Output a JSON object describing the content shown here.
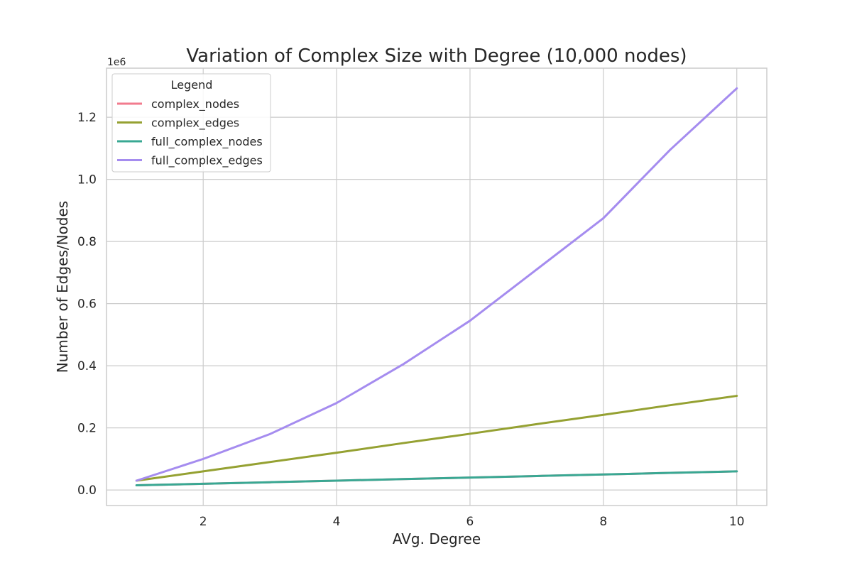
{
  "chart_data": {
    "type": "line",
    "title": "Variation of Complex Size with Degree (10,000 nodes)",
    "xlabel": "AVg. Degree",
    "ylabel": "Number of Edges/Nodes",
    "y_offset_label": "1e6",
    "xlim": [
      0.55,
      10.45
    ],
    "ylim": [
      -0.05,
      1.358
    ],
    "x_ticks": [
      2,
      4,
      6,
      8,
      10
    ],
    "x_tick_labels": [
      "2",
      "4",
      "6",
      "8",
      "10"
    ],
    "y_ticks": [
      0.0,
      0.2,
      0.4,
      0.6,
      0.8,
      1.0,
      1.2
    ],
    "y_tick_labels": [
      "0.0",
      "0.2",
      "0.4",
      "0.6",
      "0.8",
      "1.0",
      "1.2"
    ],
    "grid": true,
    "legend": {
      "title": "Legend",
      "placement": "upper-left"
    },
    "x": [
      1,
      2,
      3,
      4,
      5,
      6,
      7,
      8,
      9,
      10
    ],
    "series": [
      {
        "name": "complex_nodes",
        "color": "#f27b8e",
        "values": [
          0.015,
          0.02,
          0.025,
          0.03,
          0.035,
          0.04,
          0.045,
          0.05,
          0.055,
          0.06
        ]
      },
      {
        "name": "complex_edges",
        "color": "#95a132",
        "values": [
          0.03,
          0.06,
          0.09,
          0.12,
          0.151,
          0.181,
          0.212,
          0.242,
          0.273,
          0.303
        ]
      },
      {
        "name": "full_complex_nodes",
        "color": "#39a893",
        "values": [
          0.015,
          0.02,
          0.025,
          0.03,
          0.035,
          0.04,
          0.045,
          0.05,
          0.055,
          0.06
        ]
      },
      {
        "name": "full_complex_edges",
        "color": "#a58cef",
        "values": [
          0.03,
          0.1,
          0.18,
          0.28,
          0.405,
          0.545,
          0.71,
          0.875,
          1.095,
          1.293
        ]
      }
    ]
  }
}
